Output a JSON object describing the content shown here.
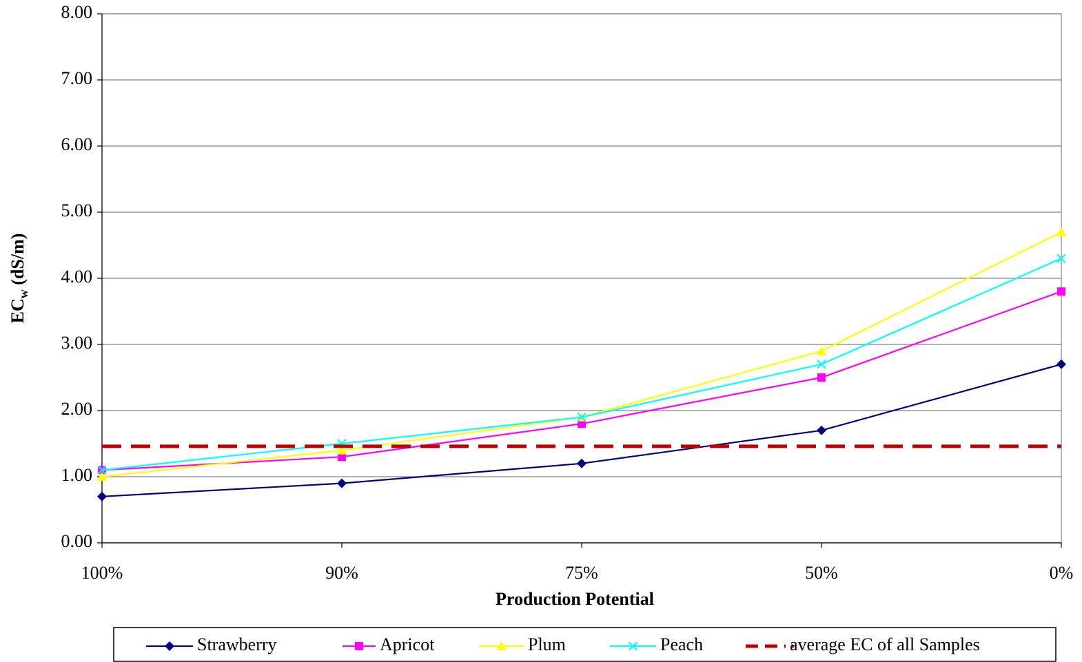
{
  "chart_data": {
    "type": "line",
    "xlabel": "Production Potential",
    "ylabel": "EC",
    "ylabel_subscript": "w",
    "ylabel_unit": " (dS/m)",
    "categories": [
      "100%",
      "90%",
      "75%",
      "50%",
      "0%"
    ],
    "ylim": [
      0,
      8
    ],
    "yticks": [
      {
        "value": 0,
        "label": "0.00"
      },
      {
        "value": 1,
        "label": "1.00"
      },
      {
        "value": 2,
        "label": "2.00"
      },
      {
        "value": 3,
        "label": "3.00"
      },
      {
        "value": 4,
        "label": "4.00"
      },
      {
        "value": 5,
        "label": "5.00"
      },
      {
        "value": 6,
        "label": "6.00"
      },
      {
        "value": 7,
        "label": "7.00"
      },
      {
        "value": 8,
        "label": "8.00"
      }
    ],
    "grid": true,
    "legend": "bottom",
    "series": [
      {
        "name": "Strawberry",
        "color": "#000080",
        "marker": "diamond",
        "values": [
          0.7,
          0.9,
          1.2,
          1.7,
          2.7
        ]
      },
      {
        "name": "Apricot",
        "color": "#ff00ff",
        "marker": "square",
        "values": [
          1.1,
          1.3,
          1.8,
          2.5,
          3.8
        ]
      },
      {
        "name": "Plum",
        "color": "#ffff00",
        "marker": "triangle",
        "values": [
          1.0,
          1.4,
          1.9,
          2.9,
          4.7
        ]
      },
      {
        "name": "Peach",
        "color": "#00ffff",
        "marker": "x",
        "values": [
          1.1,
          1.5,
          1.9,
          2.7,
          4.3
        ]
      },
      {
        "name": "average EC of all Samples",
        "color": "#c00000",
        "marker": "none",
        "dashed": true,
        "values": [
          1.46,
          1.46,
          1.46,
          1.46,
          1.46
        ]
      }
    ]
  }
}
